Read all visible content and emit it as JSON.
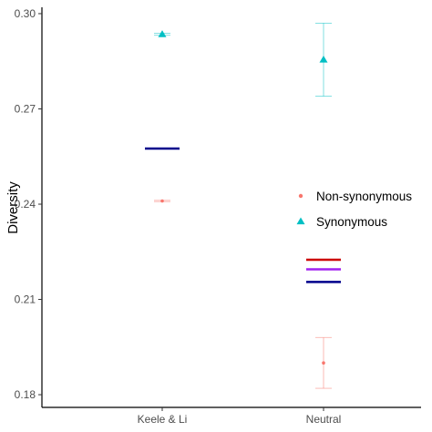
{
  "chart_data": {
    "type": "scatter",
    "title": "",
    "xlabel": "",
    "ylabel": "Diversity",
    "categories": [
      "Keele & Li",
      "Neutral"
    ],
    "ylim": [
      0.176,
      0.302
    ],
    "yticks": [
      0.18,
      0.21,
      0.24,
      0.27,
      0.3
    ],
    "ytick_labels": [
      "0.18",
      "0.21",
      "0.24",
      "0.27",
      "0.30"
    ],
    "grid": false,
    "legend_position": "right",
    "series": [
      {
        "name": "Non-synonymous",
        "marker": "circle",
        "color": "#F8766D",
        "points": [
          {
            "category": "Keele & Li",
            "y": 0.241,
            "ymin": 0.2408,
            "ymax": 0.2412
          },
          {
            "category": "Neutral",
            "y": 0.19,
            "ymin": 0.182,
            "ymax": 0.198
          }
        ]
      },
      {
        "name": "Synonymous",
        "marker": "triangle",
        "color": "#00BFC4",
        "points": [
          {
            "category": "Keele & Li",
            "y": 0.2935,
            "ymin": 0.2932,
            "ymax": 0.2938
          },
          {
            "category": "Neutral",
            "y": 0.2855,
            "ymin": 0.274,
            "ymax": 0.297
          }
        ]
      }
    ],
    "reference_lines": [
      {
        "category": "Keele & Li",
        "y": 0.2575,
        "color": "#00008B"
      },
      {
        "category": "Neutral",
        "y": 0.2225,
        "color": "#CC0000"
      },
      {
        "category": "Neutral",
        "y": 0.2195,
        "color": "#A020F0"
      },
      {
        "category": "Neutral",
        "y": 0.2155,
        "color": "#00008B"
      }
    ]
  }
}
